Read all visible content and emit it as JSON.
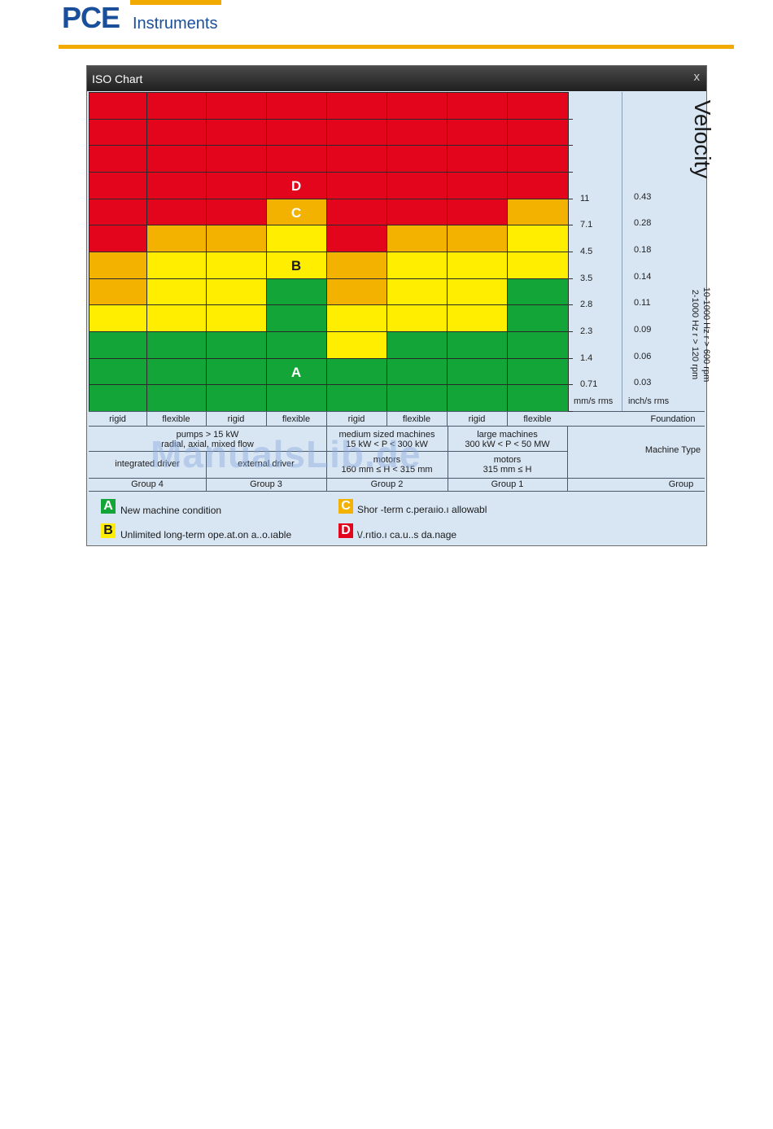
{
  "header": {
    "logo_pce": "PCE",
    "logo_instruments": "Instruments"
  },
  "window": {
    "title": "ISO Chart",
    "close_label": "x"
  },
  "colors": {
    "red": "#e3051b",
    "orange": "#f3b200",
    "yellow": "#ffee00",
    "green": "#13a538",
    "titlebar": "#2a2a2a",
    "panel": "#d8e6f4"
  },
  "chart": {
    "rows_top_to_bottom": 12,
    "columns": 8,
    "column_zones": [
      [
        "D",
        "D",
        "D",
        "D",
        "D",
        "D",
        "C",
        "C",
        "B",
        "A",
        "A",
        "A"
      ],
      [
        "D",
        "D",
        "D",
        "D",
        "D",
        "C",
        "B",
        "B",
        "B",
        "A",
        "A",
        "A"
      ],
      [
        "D",
        "D",
        "D",
        "D",
        "D",
        "C",
        "B",
        "B",
        "B",
        "A",
        "A",
        "A"
      ],
      [
        "D",
        "D",
        "D",
        "D",
        "C",
        "B",
        "B",
        "A",
        "A",
        "A",
        "A",
        "A"
      ],
      [
        "D",
        "D",
        "D",
        "D",
        "D",
        "D",
        "C",
        "C",
        "B",
        "B",
        "A",
        "A"
      ],
      [
        "D",
        "D",
        "D",
        "D",
        "D",
        "C",
        "B",
        "B",
        "B",
        "A",
        "A",
        "A"
      ],
      [
        "D",
        "D",
        "D",
        "D",
        "D",
        "C",
        "B",
        "B",
        "B",
        "A",
        "A",
        "A"
      ],
      [
        "D",
        "D",
        "D",
        "D",
        "C",
        "B",
        "B",
        "A",
        "A",
        "A",
        "A",
        "A"
      ]
    ],
    "zone_labels": {
      "D": "D",
      "C": "C",
      "B": "B",
      "A": "A"
    },
    "mm_values": [
      "11",
      "7.1",
      "4.5",
      "3.5",
      "2.8",
      "2.3",
      "1.4",
      "0.71"
    ],
    "inch_values": [
      "0.43",
      "0.28",
      "0.18",
      "0.14",
      "0.11",
      "0.09",
      "0.06",
      "0.03"
    ],
    "mm_unit": "mm/s rms",
    "inch_unit": "inch/s rms",
    "velocity_label": "Velocity",
    "freq_line1": "10-1000 Hz r > 600 rpm",
    "freq_line2": "2-1000 Hz r > 120 rpm"
  },
  "table": {
    "foundation": [
      "rigid",
      "flexible",
      "rigid",
      "flexible",
      "rigid",
      "flexible",
      "rigid",
      "flexible"
    ],
    "foundation_label": "Foundation",
    "machine_type": {
      "g34_line1": "pumps > 15 kW",
      "g34_line2": "radial, axial, mixed flow",
      "g2_line1": "medium sized machines",
      "g2_line2": "15 kW < P < 300 kW",
      "g1_line1": "large machines",
      "g1_line2": "300 kW < P < 50 MW",
      "label": "Machine Type"
    },
    "drivers": {
      "g4": "integrated driver",
      "g3": "external driver",
      "g2_line1": "motors",
      "g2_line2": "160 mm ≤ H < 315 mm",
      "g1_line1": "motors",
      "g1_line2": "315 mm ≤ H"
    },
    "groups": [
      "Group 4",
      "Group 3",
      "Group 2",
      "Group 1"
    ],
    "group_label": "Group"
  },
  "legend": {
    "a_letter": "A",
    "a_text": "New machine condition",
    "b_letter": "B",
    "b_text": "Unlimited long-term ope.at.on a..o.ıable",
    "c_letter": "C",
    "c_text": "Shor -term c.peraıio.ı allowabl",
    "d_letter": "D",
    "d_text": "\\/.rıtio.ı ca.u..s da.nage"
  },
  "watermark": "ManualsLib.de"
}
